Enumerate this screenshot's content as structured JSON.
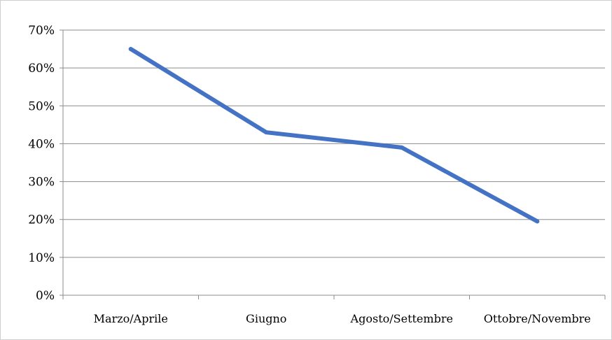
{
  "chart_data": {
    "type": "line",
    "categories": [
      "Marzo/Aprile",
      "Giugno",
      "Agosto/Settembre",
      "Ottobre/Novembre"
    ],
    "series": [
      {
        "values": [
          0.65,
          0.43,
          0.39,
          0.195
        ]
      }
    ],
    "y_ticks": [
      "0%",
      "10%",
      "20%",
      "30%",
      "40%",
      "50%",
      "60%",
      "70%"
    ],
    "ylim": [
      0,
      0.7
    ],
    "grid": true,
    "legend": "none",
    "colors": {
      "line": "#4472C4",
      "grid": "#8c8c8c",
      "axis": "#8c8c8c"
    }
  }
}
